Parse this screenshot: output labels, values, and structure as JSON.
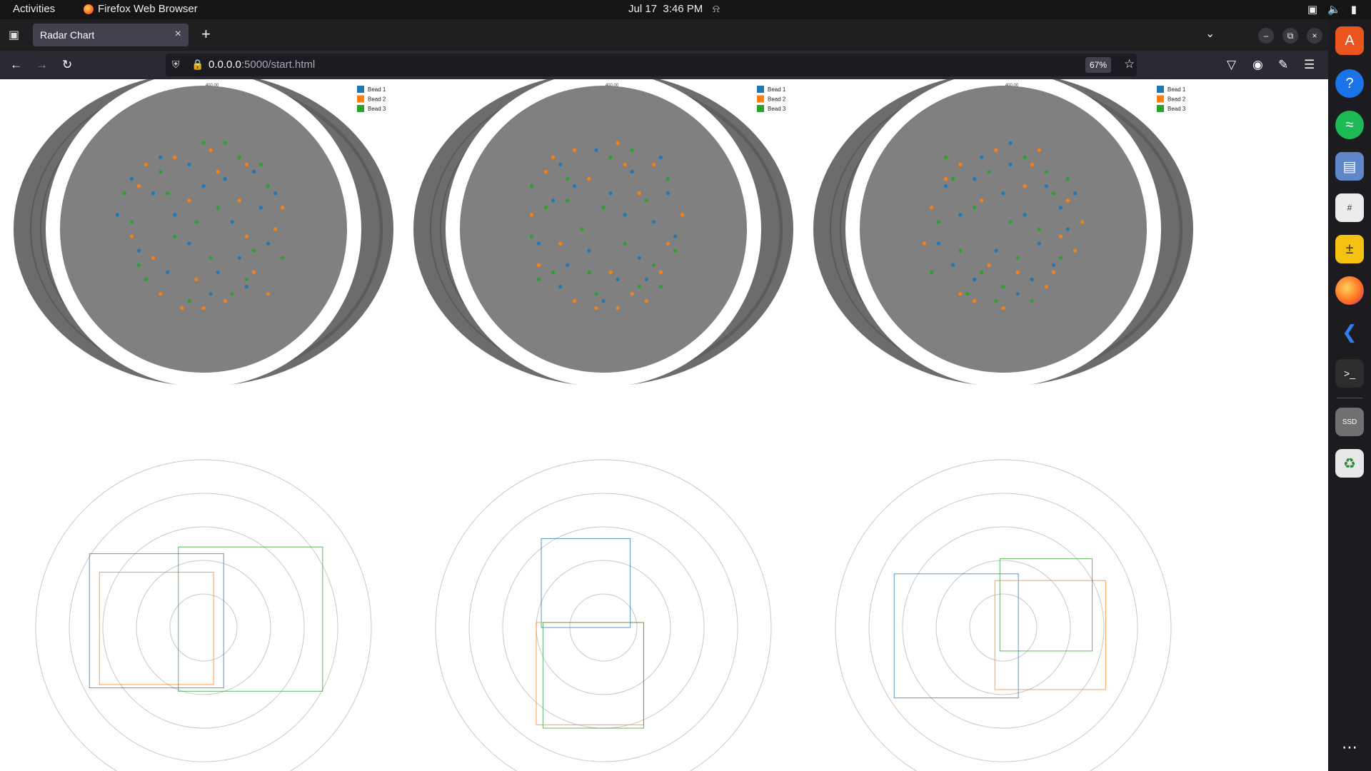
{
  "system_bar": {
    "activities": "Activities",
    "app_name": "Firefox Web Browser",
    "date": "Jul 17",
    "time": "3:46 PM"
  },
  "browser": {
    "tab_title": "Radar Chart",
    "url_host": "0.0.0.0",
    "url_rest": ":5000/start.html",
    "zoom": "67%"
  },
  "icons": {
    "firefox": "firefox-icon",
    "bell": "bell-icon",
    "network": "network-icon",
    "volume": "volume-icon",
    "battery": "battery-icon",
    "tab_list": "tab-list-icon",
    "close_tab": "close-icon",
    "new_tab": "plus-icon",
    "list_all_tabs": "chevron-down-icon",
    "minimize": "minimize-icon",
    "restore": "restore-icon",
    "close_window": "close-icon",
    "back": "back-arrow-icon",
    "forward": "forward-arrow-icon",
    "reload": "reload-icon",
    "shield": "shield-icon",
    "lock": "lock-icon",
    "bookmark": "star-icon",
    "pocket": "pocket-icon",
    "account": "account-icon",
    "extensions": "puzzle-icon",
    "menu": "hamburger-menu-icon",
    "dock": [
      "app-center-icon",
      "help-icon",
      "spotify-icon",
      "files-icon",
      "sudoku-icon",
      "calculator-icon",
      "firefox-icon",
      "vscode-icon",
      "terminal-icon",
      "ssd-drive-icon",
      "trash-icon",
      "app-grid-icon"
    ]
  },
  "colors": {
    "bead1": "#1f77b4",
    "bead2": "#ff7f0e",
    "bead3": "#2ca02c",
    "polar_bg": "#808080",
    "ring": "#6c6c6c",
    "grid_circle": "#c8c8c8"
  },
  "chart_data": [
    {
      "type": "scatter",
      "coordinate_system": "polar",
      "legend": [
        "Bead 1",
        "Bead 2",
        "Bead 3"
      ],
      "legend_position": "top-right",
      "radial_tick_label": "400.00",
      "series": [
        {
          "name": "Bead 1",
          "points": [
            [
              -0.6,
              0.1
            ],
            [
              -0.35,
              0.25
            ],
            [
              -0.1,
              0.45
            ],
            [
              0.15,
              0.35
            ],
            [
              0.4,
              0.15
            ],
            [
              0.45,
              -0.1
            ],
            [
              0.3,
              -0.4
            ],
            [
              0.05,
              -0.45
            ],
            [
              -0.25,
              -0.3
            ],
            [
              -0.45,
              -0.15
            ],
            [
              0.2,
              0.05
            ],
            [
              -0.1,
              -0.1
            ],
            [
              0.35,
              0.4
            ],
            [
              -0.3,
              0.5
            ],
            [
              0.1,
              -0.3
            ],
            [
              0.5,
              0.25
            ],
            [
              -0.5,
              0.35
            ],
            [
              0.25,
              -0.2
            ],
            [
              -0.2,
              0.1
            ],
            [
              0.0,
              0.3
            ]
          ]
        },
        {
          "name": "Bead 2",
          "points": [
            [
              -0.45,
              0.3
            ],
            [
              -0.2,
              0.5
            ],
            [
              0.05,
              0.55
            ],
            [
              0.3,
              0.45
            ],
            [
              0.5,
              0.0
            ],
            [
              0.35,
              -0.3
            ],
            [
              0.0,
              -0.55
            ],
            [
              -0.3,
              -0.45
            ],
            [
              -0.5,
              -0.05
            ],
            [
              0.15,
              -0.5
            ],
            [
              -0.1,
              0.2
            ],
            [
              0.25,
              0.2
            ],
            [
              -0.35,
              -0.2
            ],
            [
              0.45,
              -0.45
            ],
            [
              -0.05,
              -0.35
            ],
            [
              0.1,
              0.4
            ],
            [
              -0.4,
              0.45
            ],
            [
              0.55,
              0.15
            ],
            [
              -0.15,
              -0.55
            ],
            [
              0.3,
              -0.05
            ]
          ]
        },
        {
          "name": "Bead 3",
          "points": [
            [
              -0.55,
              0.25
            ],
            [
              -0.3,
              0.4
            ],
            [
              0.0,
              0.6
            ],
            [
              0.25,
              0.5
            ],
            [
              0.45,
              0.3
            ],
            [
              0.55,
              -0.2
            ],
            [
              0.2,
              -0.45
            ],
            [
              -0.1,
              -0.5
            ],
            [
              -0.4,
              -0.35
            ],
            [
              -0.5,
              0.05
            ],
            [
              0.1,
              0.15
            ],
            [
              -0.2,
              -0.05
            ],
            [
              0.35,
              -0.15
            ],
            [
              -0.25,
              0.25
            ],
            [
              0.05,
              -0.2
            ],
            [
              0.4,
              0.45
            ],
            [
              -0.45,
              -0.25
            ],
            [
              0.15,
              0.6
            ],
            [
              -0.05,
              0.05
            ],
            [
              0.3,
              -0.35
            ]
          ]
        }
      ]
    },
    {
      "type": "scatter",
      "coordinate_system": "polar",
      "legend": [
        "Bead 1",
        "Bead 2",
        "Bead 3"
      ],
      "legend_position": "top-right",
      "radial_tick_label": "400.00",
      "series": [
        {
          "name": "Bead 1",
          "points": [
            [
              -0.3,
              0.45
            ],
            [
              -0.05,
              0.55
            ],
            [
              0.2,
              0.4
            ],
            [
              0.45,
              0.25
            ],
            [
              0.5,
              -0.05
            ],
            [
              0.3,
              -0.35
            ],
            [
              0.0,
              -0.5
            ],
            [
              -0.3,
              -0.4
            ],
            [
              -0.45,
              -0.1
            ],
            [
              -0.35,
              0.2
            ],
            [
              0.15,
              0.1
            ],
            [
              -0.1,
              -0.15
            ],
            [
              0.25,
              -0.2
            ],
            [
              -0.2,
              0.3
            ],
            [
              0.05,
              0.25
            ],
            [
              0.4,
              0.5
            ],
            [
              -0.5,
              0.3
            ],
            [
              0.1,
              -0.35
            ],
            [
              -0.25,
              -0.25
            ],
            [
              0.35,
              0.05
            ]
          ]
        },
        {
          "name": "Bead 2",
          "points": [
            [
              -0.4,
              0.4
            ],
            [
              -0.2,
              0.55
            ],
            [
              0.1,
              0.6
            ],
            [
              0.35,
              0.45
            ],
            [
              0.55,
              0.1
            ],
            [
              0.4,
              -0.3
            ],
            [
              0.1,
              -0.55
            ],
            [
              -0.2,
              -0.5
            ],
            [
              -0.45,
              -0.25
            ],
            [
              -0.5,
              0.1
            ],
            [
              0.2,
              -0.45
            ],
            [
              -0.1,
              0.35
            ],
            [
              0.25,
              0.25
            ],
            [
              -0.3,
              -0.1
            ],
            [
              0.05,
              -0.3
            ],
            [
              0.45,
              -0.1
            ],
            [
              -0.35,
              0.5
            ],
            [
              0.15,
              0.45
            ],
            [
              -0.05,
              -0.55
            ],
            [
              0.3,
              -0.5
            ]
          ]
        },
        {
          "name": "Bead 3",
          "points": [
            [
              -0.5,
              0.3
            ],
            [
              -0.25,
              0.35
            ],
            [
              0.05,
              0.5
            ],
            [
              0.3,
              0.2
            ],
            [
              0.5,
              -0.15
            ],
            [
              0.25,
              -0.4
            ],
            [
              -0.05,
              -0.45
            ],
            [
              -0.35,
              -0.3
            ],
            [
              -0.5,
              -0.05
            ],
            [
              -0.4,
              0.15
            ],
            [
              0.15,
              -0.1
            ],
            [
              -0.15,
              0.0
            ],
            [
              0.35,
              -0.25
            ],
            [
              -0.25,
              0.2
            ],
            [
              0.0,
              0.15
            ],
            [
              0.45,
              0.35
            ],
            [
              -0.45,
              -0.35
            ],
            [
              0.2,
              0.55
            ],
            [
              -0.1,
              -0.3
            ],
            [
              0.4,
              -0.4
            ]
          ]
        }
      ]
    },
    {
      "type": "scatter",
      "coordinate_system": "polar",
      "legend": [
        "Bead 1",
        "Bead 2",
        "Bead 3"
      ],
      "legend_position": "top-right",
      "radial_tick_label": "400.00",
      "series": [
        {
          "name": "Bead 1",
          "points": [
            [
              -0.4,
              0.3
            ],
            [
              -0.15,
              0.5
            ],
            [
              0.05,
              0.45
            ],
            [
              0.3,
              0.3
            ],
            [
              0.45,
              0.0
            ],
            [
              0.35,
              -0.25
            ],
            [
              0.1,
              -0.45
            ],
            [
              -0.2,
              -0.35
            ],
            [
              -0.45,
              -0.1
            ],
            [
              0.15,
              0.1
            ],
            [
              -0.05,
              -0.15
            ],
            [
              0.25,
              -0.1
            ],
            [
              -0.3,
              0.1
            ],
            [
              0.0,
              0.25
            ],
            [
              0.4,
              0.15
            ],
            [
              -0.2,
              0.35
            ],
            [
              0.2,
              -0.35
            ],
            [
              -0.35,
              -0.25
            ],
            [
              0.5,
              0.25
            ],
            [
              0.05,
              0.6
            ]
          ]
        },
        {
          "name": "Bead 2",
          "points": [
            [
              -0.5,
              0.15
            ],
            [
              -0.3,
              0.45
            ],
            [
              -0.05,
              0.55
            ],
            [
              0.2,
              0.45
            ],
            [
              0.45,
              0.2
            ],
            [
              0.5,
              -0.15
            ],
            [
              0.3,
              -0.4
            ],
            [
              0.0,
              -0.55
            ],
            [
              -0.3,
              -0.45
            ],
            [
              -0.55,
              -0.1
            ],
            [
              0.1,
              -0.3
            ],
            [
              -0.15,
              0.2
            ],
            [
              0.35,
              -0.3
            ],
            [
              -0.4,
              0.35
            ],
            [
              0.15,
              0.3
            ],
            [
              0.55,
              0.05
            ],
            [
              -0.2,
              -0.5
            ],
            [
              0.4,
              -0.05
            ],
            [
              -0.1,
              -0.25
            ],
            [
              0.25,
              0.55
            ]
          ]
        },
        {
          "name": "Bead 3",
          "points": [
            [
              -0.35,
              0.35
            ],
            [
              -0.1,
              0.4
            ],
            [
              0.15,
              0.5
            ],
            [
              0.35,
              0.25
            ],
            [
              0.4,
              -0.2
            ],
            [
              0.2,
              -0.5
            ],
            [
              -0.05,
              -0.5
            ],
            [
              -0.25,
              -0.45
            ],
            [
              -0.45,
              0.05
            ],
            [
              -0.2,
              0.15
            ],
            [
              0.05,
              0.05
            ],
            [
              0.25,
              0.0
            ],
            [
              -0.3,
              -0.15
            ],
            [
              0.1,
              -0.2
            ],
            [
              -0.4,
              0.5
            ],
            [
              0.3,
              0.4
            ],
            [
              0.0,
              -0.4
            ],
            [
              -0.15,
              -0.3
            ],
            [
              0.45,
              0.35
            ],
            [
              -0.5,
              -0.3
            ]
          ]
        }
      ]
    },
    {
      "type": "rectangles",
      "coordinate_system": "polar-grid",
      "grid_circles": 5,
      "rectangles": [
        {
          "series": "Bead 1",
          "x0": -0.68,
          "x1": 0.12,
          "y0": -0.36,
          "y1": 0.44
        },
        {
          "series": "Bead 2",
          "x0": -0.62,
          "x1": 0.06,
          "y0": -0.34,
          "y1": 0.33
        },
        {
          "series": "Bead 3",
          "x0": -0.15,
          "x1": 0.71,
          "y0": -0.38,
          "y1": 0.48
        }
      ]
    },
    {
      "type": "rectangles",
      "coordinate_system": "polar-grid",
      "grid_circles": 5,
      "rectangles": [
        {
          "series": "Bead 1",
          "x0": -0.37,
          "x1": 0.16,
          "y0": 0.0,
          "y1": 0.53
        },
        {
          "series": "Bead 2",
          "x0": -0.4,
          "x1": 0.24,
          "y0": -0.58,
          "y1": 0.03
        },
        {
          "series": "Bead 3",
          "x0": -0.36,
          "x1": 0.24,
          "y0": -0.6,
          "y1": 0.03
        }
      ]
    },
    {
      "type": "rectangles",
      "coordinate_system": "polar-grid",
      "grid_circles": 5,
      "rectangles": [
        {
          "series": "Bead 1",
          "x0": -0.65,
          "x1": 0.09,
          "y0": -0.42,
          "y1": 0.32
        },
        {
          "series": "Bead 2",
          "x0": -0.05,
          "x1": 0.61,
          "y0": -0.37,
          "y1": 0.28
        },
        {
          "series": "Bead 3",
          "x0": -0.02,
          "x1": 0.53,
          "y0": -0.14,
          "y1": 0.41
        }
      ]
    }
  ]
}
